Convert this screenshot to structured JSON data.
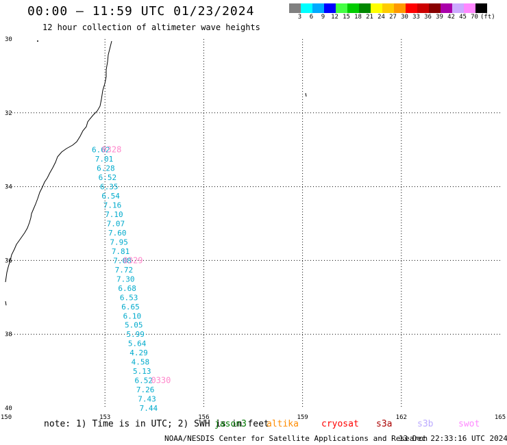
{
  "title": "00:00 – 11:59 UTC 01/23/2024",
  "subtitle": "12 hour collection of altimeter wave heights",
  "legend": {
    "colors": [
      "#808080",
      "#00ffff",
      "#00aaff",
      "#0000ff",
      "#44ff44",
      "#00cc00",
      "#008800",
      "#ffff00",
      "#ffcc00",
      "#ff9900",
      "#ff0000",
      "#cc0000",
      "#880000",
      "#aa00aa",
      "#ccaaff",
      "#ff88ff",
      "#000000"
    ],
    "labels": [
      "3",
      "6",
      "9",
      "12",
      "15",
      "18",
      "21",
      "24",
      "27",
      "30",
      "33",
      "36",
      "39",
      "42",
      "45",
      "70",
      "(ft)"
    ]
  },
  "chart_data": {
    "type": "scatter",
    "title": "00:00 – 11:59 UTC 01/23/2024",
    "subtitle": "12 hour collection of altimeter wave heights",
    "xlabel": "",
    "ylabel": "",
    "xlim": [
      150,
      165
    ],
    "ylim": [
      -40,
      -30
    ],
    "x_ticks": [
      "150",
      "153",
      "156",
      "159",
      "162",
      "165"
    ],
    "y_ticks": [
      "30",
      "32",
      "34",
      "36",
      "38",
      "40"
    ],
    "grid": true,
    "series": [
      {
        "name": "jason3",
        "color": "#00aacc",
        "points": [
          {
            "lon": 152.6,
            "lat": -33.0,
            "label": "6.62"
          },
          {
            "lon": 152.7,
            "lat": -33.25,
            "label": "7.01"
          },
          {
            "lon": 152.75,
            "lat": -33.5,
            "label": "6.28"
          },
          {
            "lon": 152.8,
            "lat": -33.75,
            "label": "6.52"
          },
          {
            "lon": 152.85,
            "lat": -34.0,
            "label": "6.35"
          },
          {
            "lon": 152.9,
            "lat": -34.25,
            "label": "6.54"
          },
          {
            "lon": 152.95,
            "lat": -34.5,
            "label": "7.16"
          },
          {
            "lon": 153.0,
            "lat": -34.75,
            "label": "7.10"
          },
          {
            "lon": 153.05,
            "lat": -35.0,
            "label": "7.07"
          },
          {
            "lon": 153.1,
            "lat": -35.25,
            "label": "7.60"
          },
          {
            "lon": 153.15,
            "lat": -35.5,
            "label": "7.95"
          },
          {
            "lon": 153.2,
            "lat": -35.75,
            "label": "7.81"
          },
          {
            "lon": 153.25,
            "lat": -36.0,
            "label": "7.08"
          },
          {
            "lon": 153.3,
            "lat": -36.25,
            "label": "7.72"
          },
          {
            "lon": 153.35,
            "lat": -36.5,
            "label": "7.30"
          },
          {
            "lon": 153.4,
            "lat": -36.75,
            "label": "6.68"
          },
          {
            "lon": 153.45,
            "lat": -37.0,
            "label": "6.53"
          },
          {
            "lon": 153.5,
            "lat": -37.25,
            "label": "6.65"
          },
          {
            "lon": 153.55,
            "lat": -37.5,
            "label": "6.10"
          },
          {
            "lon": 153.6,
            "lat": -37.75,
            "label": "5.05"
          },
          {
            "lon": 153.65,
            "lat": -38.0,
            "label": "5.99"
          },
          {
            "lon": 153.7,
            "lat": -38.25,
            "label": "5.64"
          },
          {
            "lon": 153.75,
            "lat": -38.5,
            "label": "4.29"
          },
          {
            "lon": 153.8,
            "lat": -38.75,
            "label": "4.58"
          },
          {
            "lon": 153.85,
            "lat": -39.0,
            "label": "5.13"
          },
          {
            "lon": 153.9,
            "lat": -39.25,
            "label": "6.52"
          },
          {
            "lon": 153.95,
            "lat": -39.5,
            "label": "7.26"
          },
          {
            "lon": 154.0,
            "lat": -39.75,
            "label": "7.43"
          },
          {
            "lon": 154.05,
            "lat": -40.0,
            "label": "7.44"
          }
        ]
      }
    ],
    "time_labels": [
      {
        "lon": 152.9,
        "lat": -33.0,
        "text": "0328"
      },
      {
        "lon": 153.55,
        "lat": -36.0,
        "text": "0329"
      },
      {
        "lon": 154.4,
        "lat": -39.25,
        "text": "0330"
      }
    ]
  },
  "note": "note: 1) Time is in UTC; 2) SWH is in feet",
  "satellites": [
    {
      "name": "jason3",
      "color": "#007700"
    },
    {
      "name": "altika",
      "color": "#ff8c00"
    },
    {
      "name": "cryosat",
      "color": "#ff0000"
    },
    {
      "name": "s3a",
      "color": "#aa0000"
    },
    {
      "name": "s3b",
      "color": "#bbaaff"
    },
    {
      "name": "swot",
      "color": "#ff88ff"
    }
  ],
  "credit": "NOAA/NESDIS Center for Satellite Applications and Research",
  "timestamp": "13 Dec 22:33:16 UTC 2024"
}
